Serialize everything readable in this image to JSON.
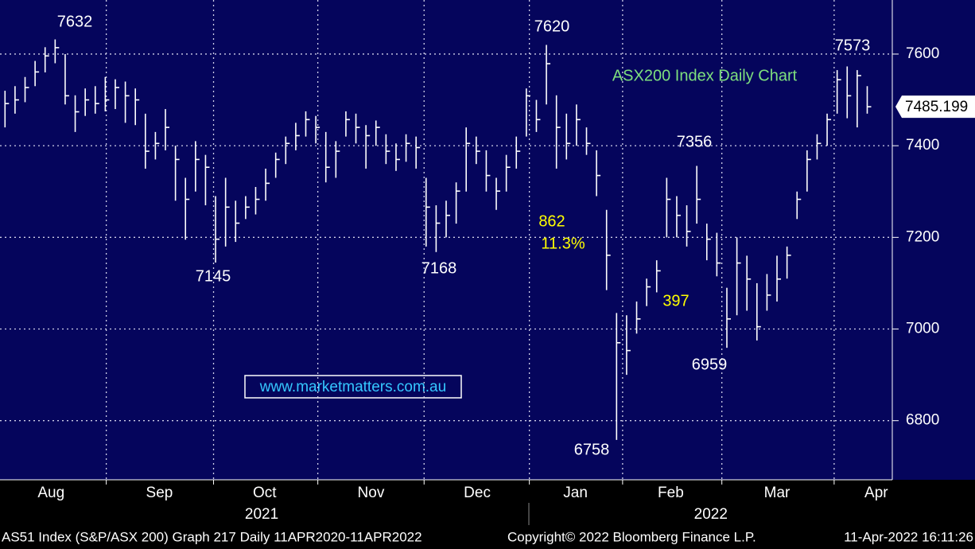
{
  "chart_data": {
    "type": "ohlc",
    "title": "ASX200 Index Daily Chart",
    "color": "#ffffff",
    "high": [
      7520,
      7530,
      7550,
      7585,
      7615,
      7632,
      7600,
      7510,
      7525,
      7530,
      7550,
      7545,
      7540,
      7525,
      7470,
      7430,
      7480,
      7400,
      7330,
      7410,
      7380,
      7290,
      7330,
      7280,
      7290,
      7310,
      7350,
      7385,
      7420,
      7450,
      7475,
      7465,
      7430,
      7410,
      7475,
      7470,
      7445,
      7455,
      7425,
      7405,
      7425,
      7420,
      7330,
      7270,
      7280,
      7320,
      7440,
      7420,
      7390,
      7330,
      7380,
      7420,
      7525,
      7500,
      7620,
      7510,
      7470,
      7490,
      7440,
      7390,
      7260,
      7035,
      7030,
      7060,
      7110,
      7150,
      7330,
      7290,
      7270,
      7356,
      7230,
      7210,
      7090,
      7200,
      7160,
      7100,
      7120,
      7160,
      7180,
      7300,
      7390,
      7425,
      7470,
      7565,
      7573,
      7565,
      7530
    ],
    "low": [
      7440,
      7470,
      7495,
      7530,
      7560,
      7580,
      7490,
      7430,
      7465,
      7470,
      7475,
      7480,
      7450,
      7445,
      7350,
      7370,
      7390,
      7280,
      7195,
      7300,
      7270,
      7145,
      7180,
      7190,
      7240,
      7250,
      7280,
      7330,
      7360,
      7390,
      7420,
      7405,
      7320,
      7330,
      7420,
      7405,
      7350,
      7400,
      7360,
      7345,
      7365,
      7350,
      7180,
      7168,
      7200,
      7230,
      7300,
      7360,
      7300,
      7260,
      7300,
      7350,
      7420,
      7430,
      7490,
      7350,
      7370,
      7400,
      7380,
      7290,
      7085,
      6758,
      6900,
      6990,
      7050,
      7080,
      7200,
      7200,
      7180,
      7230,
      7150,
      7115,
      6959,
      7030,
      7040,
      6975,
      7040,
      7060,
      7110,
      7240,
      7300,
      7370,
      7400,
      7470,
      7460,
      7440,
      7470
    ],
    "close": [
      7492,
      7500,
      7527,
      7561,
      7596,
      7614,
      7509,
      7474,
      7500,
      7492,
      7500,
      7527,
      7509,
      7500,
      7388,
      7405,
      7440,
      7370,
      7283,
      7370,
      7353,
      7196,
      7266,
      7231,
      7266,
      7283,
      7318,
      7370,
      7405,
      7422,
      7457,
      7440,
      7353,
      7388,
      7457,
      7440,
      7422,
      7440,
      7388,
      7370,
      7405,
      7396,
      7266,
      7231,
      7248,
      7301,
      7405,
      7388,
      7335,
      7301,
      7353,
      7388,
      7509,
      7457,
      7579,
      7440,
      7405,
      7457,
      7405,
      7335,
      7161,
      6970,
      6953,
      7022,
      7092,
      7127,
      7283,
      7248,
      7213,
      7283,
      7196,
      7144,
      7022,
      7144,
      7109,
      7005,
      7074,
      7109,
      7161,
      7283,
      7370,
      7405,
      7457,
      7544,
      7509,
      7553,
      7485
    ],
    "last_price": 7485.199,
    "xlim": [
      -0.5,
      88.5
    ],
    "xgrid": [
      10.1,
      20.8,
      31.2,
      41.8,
      52.3,
      61.6,
      71.5,
      82.7
    ],
    "xticks": [
      {
        "value": 4.6,
        "label": "Aug"
      },
      {
        "value": 15.4,
        "label": "Sep"
      },
      {
        "value": 25.9,
        "label": "Oct"
      },
      {
        "value": 36.5,
        "label": "Nov"
      },
      {
        "value": 47.1,
        "label": "Dec"
      },
      {
        "value": 56.9,
        "label": "Jan"
      },
      {
        "value": 66.4,
        "label": "Feb"
      },
      {
        "value": 77,
        "label": "Mar"
      },
      {
        "value": 86.9,
        "label": "Apr"
      }
    ],
    "years": [
      {
        "value": 25.6,
        "label": "2021"
      },
      {
        "value": 70.4,
        "label": "2022"
      }
    ],
    "ylim": [
      6671,
      7718
    ],
    "yticks": [
      6800,
      7000,
      7200,
      7400,
      7600
    ],
    "grid": true,
    "annotations": [
      "7632",
      "7145",
      "7168",
      "7620",
      "7356",
      "6959",
      "6758",
      "7573",
      "862",
      "11.3%",
      "397"
    ],
    "watermark": "www.marketmatters.com.au"
  },
  "footer": {
    "left": "AS51 Index (S&P/ASX 200) Graph 217  Daily 11APR2020-11APR2022",
    "middle": "Copyright© 2022 Bloomberg Finance L.P.",
    "right": "11-Apr-2022 16:11:26"
  }
}
